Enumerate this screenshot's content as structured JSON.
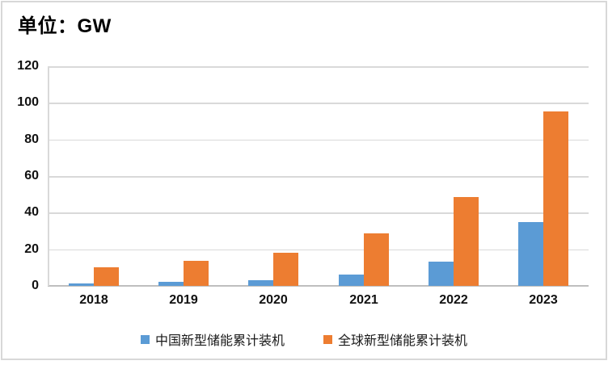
{
  "header": {
    "title": "单位：GW"
  },
  "colors": {
    "china_series": "#5B9BD5",
    "global_series": "#ED7D31",
    "gridline": "#D9D9D9",
    "axis_line": "#BFBFBF",
    "frame_border": "#D8D8D8",
    "text": "#111111"
  },
  "chart_data": {
    "type": "bar",
    "title": "单位：GW",
    "categories": [
      "2018",
      "2019",
      "2020",
      "2021",
      "2022",
      "2023"
    ],
    "series": [
      {
        "key": "china",
        "name": "中国新型储能累计装机",
        "color": "#5B9BD5",
        "values": [
          1.3,
          2.2,
          3.3,
          6.0,
          13.1,
          35.0
        ]
      },
      {
        "key": "global",
        "name": "全球新型储能累计装机",
        "color": "#ED7D31",
        "values": [
          10.0,
          13.7,
          18.3,
          28.5,
          48.5,
          95.5
        ]
      }
    ],
    "xlabel": "",
    "ylabel": "",
    "ylim": [
      0,
      120
    ],
    "yticks": [
      0,
      20,
      40,
      60,
      80,
      100,
      120
    ],
    "grid": true,
    "legend_position": "bottom"
  }
}
